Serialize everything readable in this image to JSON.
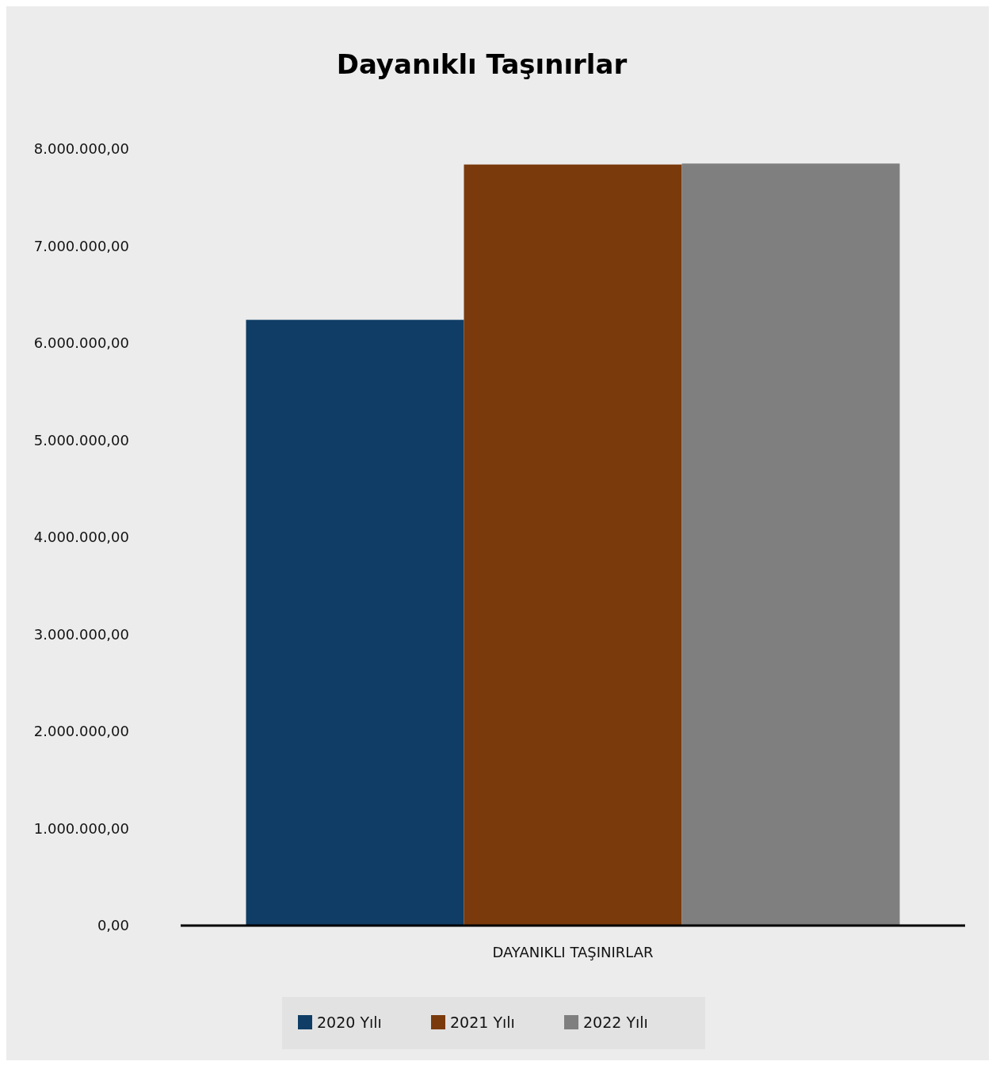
{
  "chart_data": {
    "type": "bar",
    "title": "Dayanıklı Taşınırlar",
    "categories": [
      "DAYANIKLI TAŞINIRLAR"
    ],
    "series": [
      {
        "name": "2020 Yılı",
        "color": "#0f3d66",
        "values": [
          6240000
        ]
      },
      {
        "name": "2021 Yılı",
        "color": "#7a3a0c",
        "values": [
          7840000
        ]
      },
      {
        "name": "2022 Yılı",
        "color": "#7f7f7f",
        "values": [
          7850000
        ]
      }
    ],
    "ylim": [
      0,
      8000000
    ],
    "yticks": [
      {
        "value": 0,
        "label": "0,00"
      },
      {
        "value": 1000000,
        "label": "1.000.000,00"
      },
      {
        "value": 2000000,
        "label": "2.000.000,00"
      },
      {
        "value": 3000000,
        "label": "3.000.000,00"
      },
      {
        "value": 4000000,
        "label": "4.000.000,00"
      },
      {
        "value": 5000000,
        "label": "5.000.000,00"
      },
      {
        "value": 6000000,
        "label": "6.000.000,00"
      },
      {
        "value": 7000000,
        "label": "7.000.000,00"
      },
      {
        "value": 8000000,
        "label": "8.000.000,00"
      }
    ],
    "legend": "bottom",
    "grid": false
  }
}
